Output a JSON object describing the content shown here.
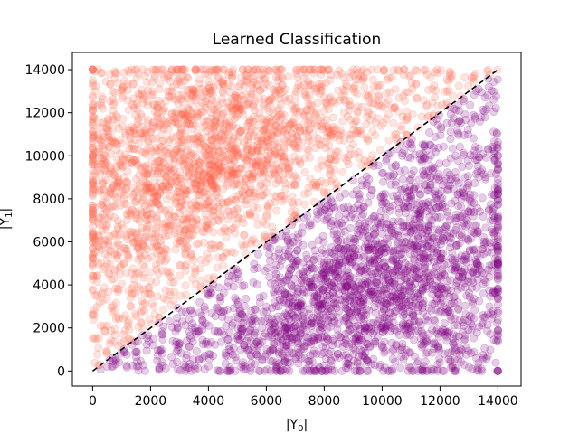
{
  "chart_data": {
    "type": "scatter",
    "title": "Learned Classification",
    "xlabel": "|Y",
    "xlabel_subscript": "0",
    "ylabel": "|Y",
    "ylabel_subscript": "1",
    "xlim": [
      -700,
      14800
    ],
    "ylim": [
      -700,
      14800
    ],
    "xticks": [
      0,
      2000,
      4000,
      6000,
      8000,
      10000,
      12000,
      14000
    ],
    "yticks": [
      0,
      2000,
      4000,
      6000,
      8000,
      10000,
      12000,
      14000
    ],
    "grid": false,
    "colors": {
      "class_a": "#ff6347",
      "class_b": "#800080",
      "boundary": "#000000"
    },
    "series": [
      {
        "values": [
          [
            6500,
            9500
          ],
          [
            4500,
            11000
          ],
          [
            5500,
            10500
          ],
          [
            3000,
            8000
          ],
          [
            2000,
            6000
          ],
          [
            7000,
            11000
          ],
          [
            1000,
            9500
          ],
          [
            3500,
            12000
          ],
          [
            6000,
            13500
          ],
          [
            8000,
            12500
          ],
          [
            9500,
            13000
          ],
          [
            11000,
            13500
          ],
          [
            2500,
            4000
          ],
          [
            500,
            3000
          ],
          [
            4000,
            7000
          ]
        ]
      },
      {
        "values": [
          [
            9000,
            7000
          ],
          [
            10000,
            5000
          ],
          [
            8000,
            4000
          ],
          [
            11500,
            8500
          ],
          [
            12000,
            3000
          ],
          [
            9500,
            1000
          ],
          [
            6000,
            2000
          ],
          [
            4500,
            1500
          ],
          [
            13000,
            6000
          ],
          [
            13500,
            11000
          ],
          [
            10500,
            9500
          ],
          [
            7500,
            6000
          ],
          [
            3500,
            3000
          ],
          [
            1500,
            1500
          ],
          [
            12500,
            12500
          ]
        ]
      }
    ],
    "boundary_line": {
      "x": [
        0,
        14000
      ],
      "y": [
        0,
        14000
      ]
    },
    "point_count": 5000
  }
}
